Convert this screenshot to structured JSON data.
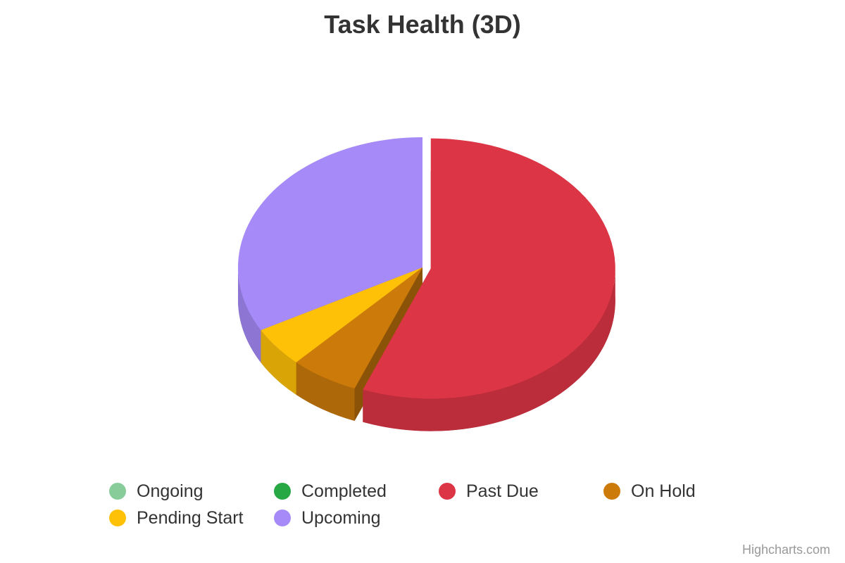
{
  "chart_data": {
    "type": "pie",
    "title": "Task Health (3D)",
    "categories": [
      "Ongoing",
      "Completed",
      "Past Due",
      "On Hold",
      "Pending Start",
      "Upcoming"
    ],
    "values": [
      0,
      0,
      56,
      6,
      5,
      33
    ],
    "colors": [
      "#88cc99",
      "#28a745",
      "#dc3545",
      "#cc7a0a",
      "#ffc107",
      "#a68bf8"
    ],
    "legend_position": "bottom",
    "three_d": true,
    "sliced": "Past Due"
  },
  "credits": "Highcharts.com"
}
